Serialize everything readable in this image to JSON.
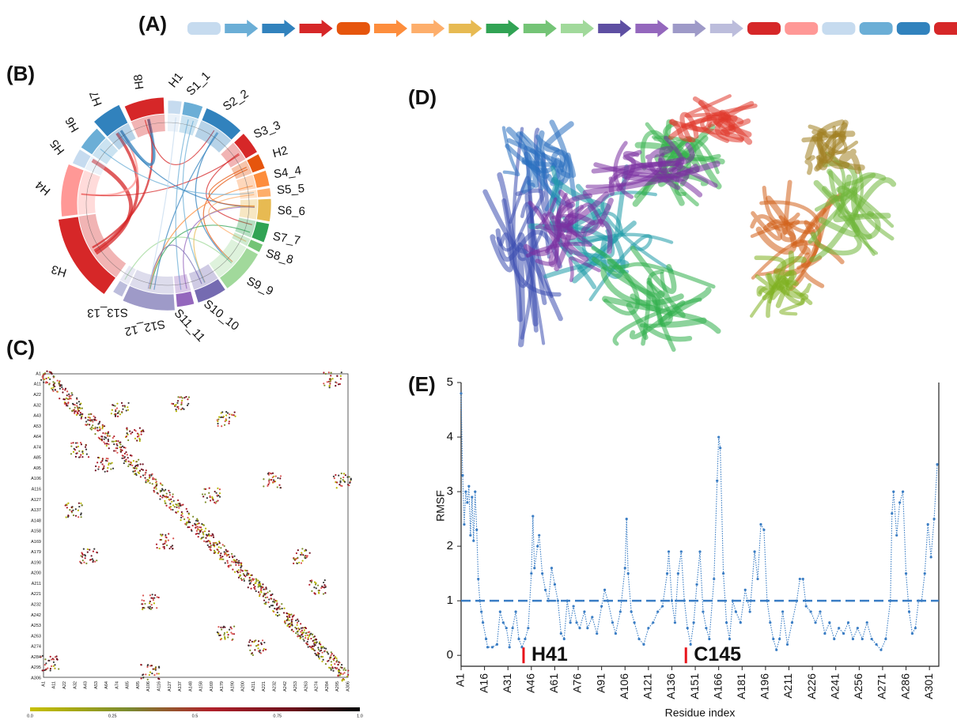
{
  "panel_labels": [
    "(A)",
    "(B)",
    "(C)",
    "(D)",
    "(E)"
  ],
  "chord_labels": [
    "H1",
    "S1_1",
    "S2_2",
    "S3_3",
    "H2",
    "S4_4",
    "S5_5",
    "S6_6",
    "S7_7",
    "S8_8",
    "S9_9",
    "S10_10",
    "S11_11",
    "S12_12",
    "S13_13",
    "H3",
    "H4",
    "H5",
    "H6",
    "H7",
    "H8"
  ],
  "contact_map": {
    "tick_labels": [
      "A1",
      "A11",
      "A22",
      "A32",
      "A43",
      "A53",
      "A64",
      "A74",
      "A85",
      "A95",
      "A106",
      "A116",
      "A127",
      "A137",
      "A148",
      "A158",
      "A169",
      "A179",
      "A190",
      "A200",
      "A211",
      "A221",
      "A232",
      "A242",
      "A253",
      "A263",
      "A274",
      "A284",
      "A295",
      "A306"
    ],
    "colorbar_ticks": [
      "0.0",
      "0.25",
      "0.5",
      "0.75",
      "1.0"
    ]
  },
  "chart_data": {
    "type": "line",
    "xlabel": "Residue index",
    "ylabel": "RMSF",
    "color": "#3a7dc4",
    "x": [
      1,
      2,
      3,
      4,
      5,
      6,
      7,
      8,
      9,
      10,
      11,
      12,
      13,
      14,
      15,
      17,
      18,
      21,
      24,
      26,
      28,
      30,
      32,
      34,
      36,
      38,
      40,
      42,
      44,
      46,
      47,
      48,
      50,
      51,
      53,
      55,
      57,
      59,
      61,
      63,
      65,
      67,
      69,
      71,
      73,
      75,
      77,
      80,
      82,
      85,
      88,
      91,
      93,
      95,
      98,
      100,
      103,
      106,
      107,
      108,
      110,
      112,
      115,
      118,
      121,
      124,
      127,
      130,
      133,
      134,
      136,
      138,
      140,
      142,
      144,
      146,
      148,
      150,
      152,
      154,
      156,
      158,
      160,
      163,
      165,
      166,
      167,
      169,
      171,
      173,
      175,
      177,
      180,
      183,
      186,
      189,
      191,
      193,
      195,
      197,
      199,
      201,
      203,
      205,
      207,
      210,
      213,
      216,
      218,
      220,
      222,
      225,
      228,
      231,
      234,
      237,
      240,
      243,
      246,
      249,
      252,
      255,
      258,
      261,
      264,
      267,
      270,
      273,
      276,
      277,
      278,
      280,
      282,
      284,
      286,
      288,
      290,
      292,
      294,
      296,
      298,
      300,
      302,
      304,
      306
    ],
    "values": [
      4.8,
      3.3,
      2.4,
      3.0,
      2.8,
      3.1,
      2.2,
      2.9,
      2.1,
      3.0,
      2.3,
      1.4,
      1.0,
      0.8,
      0.6,
      0.3,
      0.15,
      0.15,
      0.2,
      0.8,
      0.6,
      0.5,
      0.15,
      0.5,
      0.8,
      0.3,
      0.15,
      0.3,
      0.5,
      1.5,
      2.55,
      1.6,
      2.0,
      2.2,
      1.5,
      1.2,
      1.0,
      1.6,
      1.3,
      1.0,
      0.4,
      0.3,
      1.0,
      0.6,
      0.9,
      0.6,
      0.5,
      0.8,
      0.5,
      0.7,
      0.4,
      0.9,
      1.2,
      1.0,
      0.6,
      0.4,
      0.8,
      1.6,
      2.5,
      1.5,
      0.8,
      0.6,
      0.3,
      0.2,
      0.5,
      0.6,
      0.8,
      0.9,
      1.5,
      1.9,
      1.0,
      0.6,
      1.5,
      1.9,
      1.0,
      0.5,
      0.2,
      0.6,
      1.3,
      1.9,
      0.8,
      0.5,
      0.3,
      1.4,
      3.2,
      4.0,
      3.8,
      1.5,
      0.6,
      0.3,
      1.0,
      0.8,
      0.6,
      1.2,
      0.8,
      1.9,
      1.4,
      2.4,
      2.3,
      1.0,
      0.6,
      0.3,
      0.1,
      0.3,
      0.8,
      0.2,
      0.6,
      1.0,
      1.4,
      1.4,
      0.9,
      0.8,
      0.6,
      0.8,
      0.4,
      0.6,
      0.3,
      0.5,
      0.4,
      0.6,
      0.3,
      0.5,
      0.3,
      0.6,
      0.3,
      0.2,
      0.1,
      0.3,
      1.0,
      2.6,
      3.0,
      2.2,
      2.8,
      3.0,
      1.5,
      0.8,
      0.4,
      0.5,
      1.0,
      1.0,
      1.5,
      2.4,
      1.8,
      2.5,
      3.5
    ],
    "hline": {
      "value": 1,
      "color": "#3a7dc4",
      "style": "dashed"
    },
    "annotations": [
      {
        "text": "H41",
        "x": 41,
        "color": "#e8141b"
      },
      {
        "text": "C145",
        "x": 145,
        "color": "#e8141b"
      }
    ],
    "xlim": [
      1,
      307
    ],
    "ylim": [
      -0.2,
      5
    ],
    "yticks": [
      0,
      1,
      2,
      3,
      4,
      5
    ],
    "xticks": [
      {
        "value": 1,
        "label": "A1"
      },
      {
        "value": 16,
        "label": "A16"
      },
      {
        "value": 31,
        "label": "A31"
      },
      {
        "value": 46,
        "label": "A46"
      },
      {
        "value": 61,
        "label": "A61"
      },
      {
        "value": 76,
        "label": "A76"
      },
      {
        "value": 91,
        "label": "A91"
      },
      {
        "value": 106,
        "label": "A106"
      },
      {
        "value": 121,
        "label": "A121"
      },
      {
        "value": 136,
        "label": "A136"
      },
      {
        "value": 151,
        "label": "A151"
      },
      {
        "value": 166,
        "label": "A166"
      },
      {
        "value": 181,
        "label": "A181"
      },
      {
        "value": 196,
        "label": "A196"
      },
      {
        "value": 211,
        "label": "A211"
      },
      {
        "value": 226,
        "label": "A226"
      },
      {
        "value": 241,
        "label": "A241"
      },
      {
        "value": 256,
        "label": "A256"
      },
      {
        "value": 271,
        "label": "A271"
      },
      {
        "value": 286,
        "label": "A286"
      },
      {
        "value": 301,
        "label": "A301"
      }
    ]
  }
}
